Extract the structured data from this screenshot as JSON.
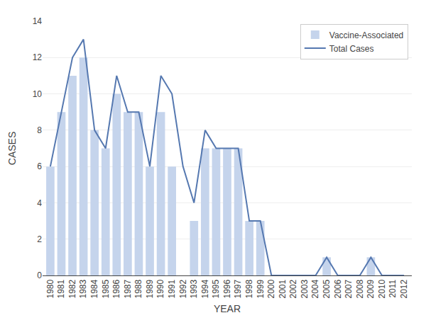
{
  "chart_data": {
    "type": "bar",
    "x": [
      1980,
      1981,
      1982,
      1983,
      1984,
      1985,
      1986,
      1987,
      1988,
      1989,
      1990,
      1991,
      1992,
      1993,
      1994,
      1995,
      1996,
      1997,
      1998,
      1999,
      2000,
      2001,
      2002,
      2003,
      2004,
      2005,
      2006,
      2007,
      2008,
      2009,
      2010,
      2011,
      2012
    ],
    "series": [
      {
        "name": "Vaccine-Associated",
        "type": "bar",
        "color": "#c5d4ec",
        "values": [
          6,
          9,
          11,
          12,
          8,
          7,
          10,
          9,
          9,
          6,
          9,
          6,
          0,
          3,
          7,
          7,
          7,
          7,
          3,
          3,
          0,
          0,
          0,
          0,
          0,
          1,
          0,
          0,
          0,
          1,
          0,
          0,
          0
        ]
      },
      {
        "name": "Total Cases",
        "type": "line",
        "color": "#5578b0",
        "values": [
          6,
          9,
          12,
          13,
          8,
          7,
          11,
          9,
          9,
          6,
          11,
          10,
          6,
          4,
          8,
          7,
          7,
          7,
          3,
          3,
          0,
          0,
          0,
          0,
          0,
          1,
          0,
          0,
          0,
          1,
          0,
          0,
          0
        ]
      }
    ],
    "xlabel": "YEAR",
    "ylabel": "CASES",
    "xlim": [
      1979.3,
      2012.7
    ],
    "xticks": [
      1980,
      1981,
      1982,
      1983,
      1984,
      1985,
      1986,
      1987,
      1988,
      1989,
      1990,
      1991,
      1992,
      1993,
      1994,
      1995,
      1996,
      1997,
      1998,
      1999,
      2000,
      2001,
      2002,
      2003,
      2004,
      2005,
      2006,
      2007,
      2008,
      2009,
      2010,
      2011,
      2012
    ],
    "ylim": [
      0,
      14
    ],
    "yticks": [
      0,
      2,
      4,
      6,
      8,
      10,
      12,
      14
    ],
    "grid": "y",
    "legend": "upper right"
  }
}
